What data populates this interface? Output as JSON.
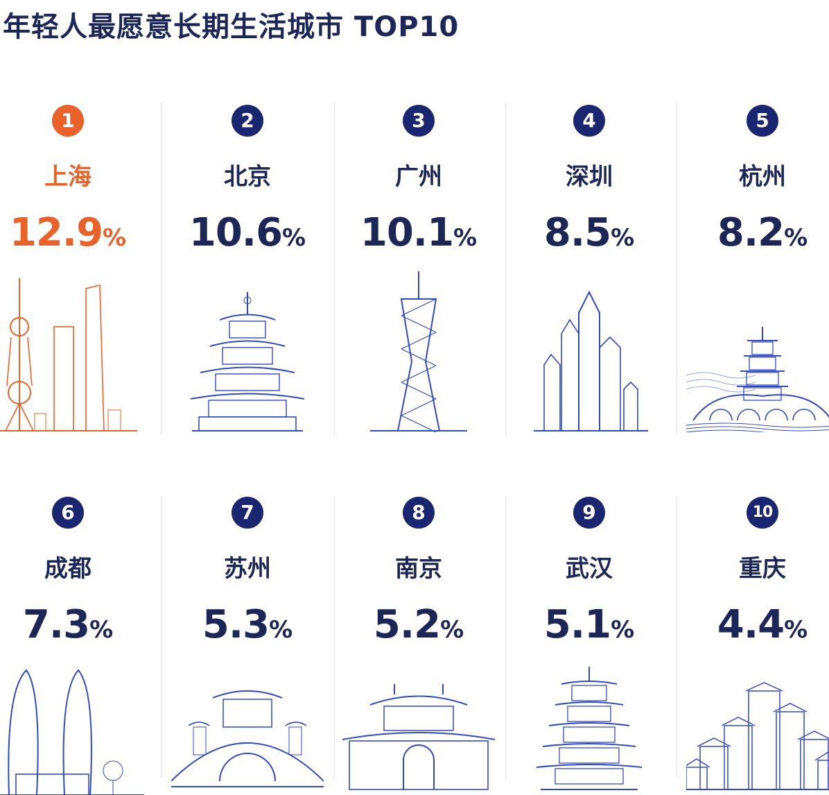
{
  "header": {
    "title": "年轻人最愿意长期生活城市 TOP10"
  },
  "items": [
    {
      "rank": 1,
      "city": "上海",
      "value": 12.9,
      "unit": "%"
    },
    {
      "rank": 2,
      "city": "北京",
      "value": 10.6,
      "unit": "%"
    },
    {
      "rank": 3,
      "city": "广州",
      "value": 10.1,
      "unit": "%"
    },
    {
      "rank": 4,
      "city": "深圳",
      "value": 8.5,
      "unit": "%"
    },
    {
      "rank": 5,
      "city": "杭州",
      "value": 8.2,
      "unit": "%"
    },
    {
      "rank": 6,
      "city": "成都",
      "value": 7.3,
      "unit": "%"
    },
    {
      "rank": 7,
      "city": "苏州",
      "value": 5.3,
      "unit": "%"
    },
    {
      "rank": 8,
      "city": "南京",
      "value": 5.2,
      "unit": "%"
    },
    {
      "rank": 9,
      "city": "武汉",
      "value": 5.1,
      "unit": "%"
    },
    {
      "rank": 10,
      "city": "重庆",
      "value": 4.4,
      "unit": "%"
    }
  ]
}
